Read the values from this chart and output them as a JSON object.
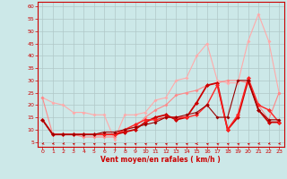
{
  "xlabel": "Vent moyen/en rafales ( km/h )",
  "xlim": [
    -0.5,
    23.5
  ],
  "ylim": [
    3,
    62
  ],
  "yticks": [
    5,
    10,
    15,
    20,
    25,
    30,
    35,
    40,
    45,
    50,
    55,
    60
  ],
  "xticks": [
    0,
    1,
    2,
    3,
    4,
    5,
    6,
    7,
    8,
    9,
    10,
    11,
    12,
    13,
    14,
    15,
    16,
    17,
    18,
    19,
    20,
    21,
    22,
    23
  ],
  "bg_color": "#cce8e8",
  "grid_color": "#b0c8c8",
  "series": [
    {
      "color": "#ffaaaa",
      "linewidth": 0.8,
      "marker": "D",
      "markersize": 2.0,
      "values": [
        23,
        21,
        20,
        17,
        17,
        16,
        16,
        6,
        16,
        16,
        17,
        22,
        23,
        30,
        31,
        40,
        45,
        30,
        29,
        29,
        46,
        57,
        46,
        25
      ]
    },
    {
      "color": "#ff8888",
      "linewidth": 0.8,
      "marker": "D",
      "markersize": 2.0,
      "values": [
        23,
        8,
        8,
        8,
        7,
        7,
        7,
        7,
        10,
        11,
        15,
        18,
        20,
        24,
        25,
        26,
        28,
        29,
        30,
        30,
        29,
        20,
        14,
        25
      ]
    },
    {
      "color": "#cc0000",
      "linewidth": 1.3,
      "marker": "D",
      "markersize": 2.5,
      "values": [
        14,
        8,
        8,
        8,
        8,
        8,
        8,
        8,
        9,
        10,
        13,
        15,
        16,
        14,
        15,
        21,
        28,
        29,
        10,
        15,
        30,
        18,
        13,
        13
      ]
    },
    {
      "color": "#ff2222",
      "linewidth": 1.0,
      "marker": "D",
      "markersize": 2.5,
      "values": [
        14,
        8,
        8,
        8,
        8,
        8,
        8,
        8,
        10,
        12,
        14,
        14,
        15,
        15,
        15,
        16,
        20,
        28,
        10,
        16,
        31,
        20,
        18,
        13
      ]
    },
    {
      "color": "#990000",
      "linewidth": 0.8,
      "marker": "D",
      "markersize": 2.0,
      "values": [
        14,
        8,
        8,
        8,
        8,
        8,
        9,
        9,
        10,
        11,
        12,
        13,
        15,
        15,
        16,
        17,
        20,
        15,
        15,
        30,
        30,
        18,
        14,
        14
      ]
    }
  ],
  "arrow_color": "#cc0000",
  "arrow_angles": [
    225,
    225,
    225,
    315,
    315,
    315,
    315,
    315,
    315,
    315,
    315,
    315,
    315,
    315,
    315,
    270,
    315,
    315,
    315,
    315,
    315,
    225,
    225,
    225
  ]
}
